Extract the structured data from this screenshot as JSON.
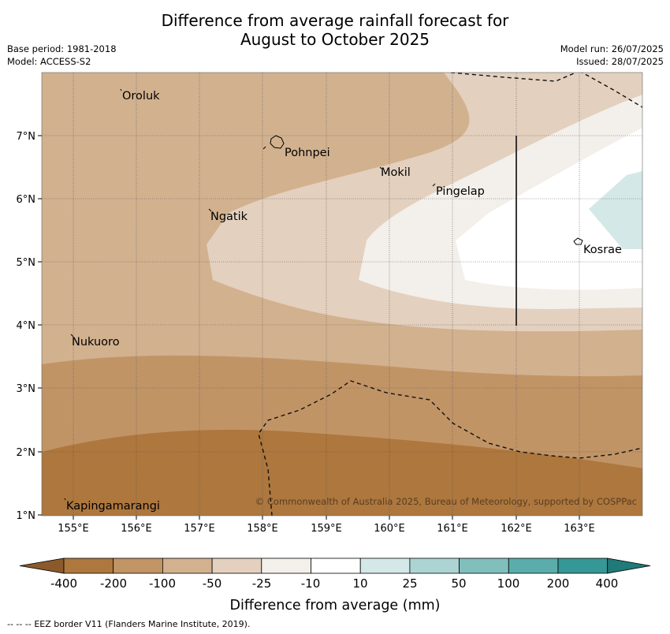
{
  "header": {
    "title_line1": "Difference from average rainfall forecast for",
    "title_line2": "August to October 2025",
    "base_period": "Base period: 1981-2018",
    "model": "Model: ACCESS-S2",
    "model_run": "Model run: 26/07/2025",
    "issued": "Issued: 28/07/2025"
  },
  "map": {
    "x_ticks": [
      "155°E",
      "156°E",
      "157°E",
      "158°E",
      "159°E",
      "160°E",
      "161°E",
      "162°E",
      "163°E"
    ],
    "y_ticks": [
      "7°N",
      "6°N",
      "5°N",
      "4°N",
      "3°N",
      "2°N",
      "1°N"
    ],
    "places": [
      "Oroluk",
      "Pohnpei",
      "Mokil",
      "Pingelap",
      "Ngatik",
      "Kosrae",
      "Nukuoro",
      "Kapingamarangi"
    ],
    "copyright": "© Commonwealth of Australia 2025, Bureau of Meteorology, supported by COSPPac"
  },
  "colorbar": {
    "labels": [
      "-400",
      "-200",
      "-100",
      "-50",
      "-25",
      "-10",
      "10",
      "25",
      "50",
      "100",
      "200",
      "400"
    ],
    "colors": [
      "#8a5a2b",
      "#ad773e",
      "#c19466",
      "#d2b18f",
      "#e3d0be",
      "#f3efea",
      "#ffffff",
      "#d5e8e8",
      "#acd4d3",
      "#81bfbd",
      "#5aadab",
      "#359896",
      "#1f7a78"
    ],
    "label": "Difference from average (mm)"
  },
  "footer": {
    "legend_symbol": "-- -- --",
    "text": "EEZ border V11 (Flanders Marine Institute, 2019)."
  }
}
